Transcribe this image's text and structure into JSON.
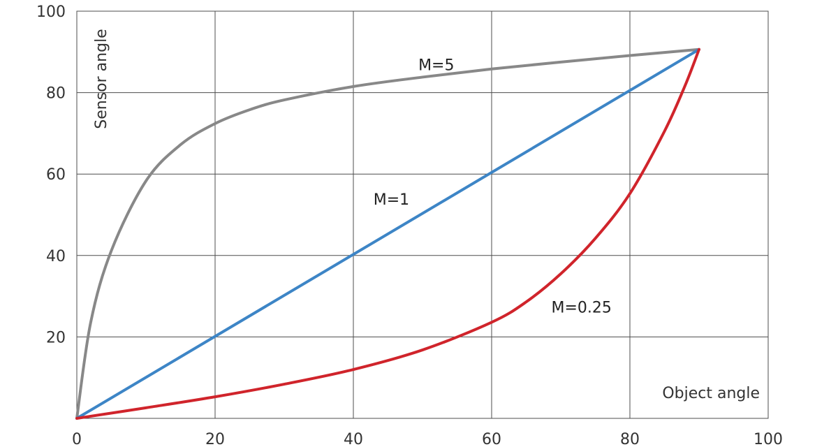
{
  "chart_data": {
    "type": "line",
    "title": "",
    "xlabel": "Object angle",
    "ylabel": "Sensor angle",
    "xlim": [
      0,
      100
    ],
    "ylim": [
      0,
      100
    ],
    "x_ticks": [
      "0",
      "20",
      "40",
      "60",
      "80",
      "100"
    ],
    "y_ticks": [
      "20",
      "40",
      "60",
      "80",
      "100"
    ],
    "grid": true,
    "series": [
      {
        "name": "M=5",
        "color": "#888888",
        "x": [
          0,
          2,
          5,
          10,
          15,
          20,
          25,
          30,
          40,
          50,
          60,
          70,
          80,
          90
        ],
        "y": [
          0,
          23.5,
          41.2,
          58.3,
          67.2,
          72.4,
          75.8,
          78.2,
          81.5,
          83.8,
          85.8,
          87.5,
          89.1,
          90.6
        ]
      },
      {
        "name": "M=1",
        "color": "#3d85c6",
        "x": [
          0,
          90
        ],
        "y": [
          0,
          90.6
        ]
      },
      {
        "name": "M=0.25",
        "color": "#d0242b",
        "x": [
          0,
          10,
          20,
          30,
          40,
          50,
          60,
          65,
          70,
          75,
          80,
          85,
          88,
          90
        ],
        "y": [
          0,
          2.6,
          5.3,
          8.4,
          12.0,
          16.8,
          23.6,
          28.6,
          35.5,
          44.2,
          55.2,
          70.5,
          81.8,
          90.6
        ]
      }
    ],
    "labels": [
      {
        "text": "M=5",
        "series": "M=5",
        "x": 52,
        "y": 85.5
      },
      {
        "text": "M=1",
        "series": "M=1",
        "x": 45.5,
        "y": 52.5
      },
      {
        "text": "M=0.25",
        "series": "M=0.25",
        "x": 73,
        "y": 26
      }
    ]
  }
}
